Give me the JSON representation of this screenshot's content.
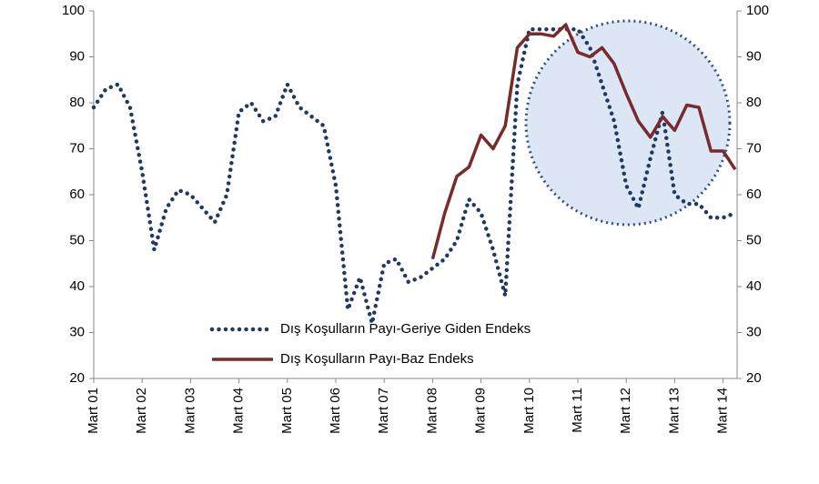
{
  "chart_data": {
    "type": "line",
    "categories": [
      "Mart 01",
      null,
      null,
      null,
      "Mart 02",
      null,
      null,
      null,
      "Mart 03",
      null,
      null,
      null,
      "Mart 04",
      null,
      null,
      null,
      "Mart 05",
      null,
      null,
      null,
      "Mart 06",
      null,
      null,
      null,
      "Mart 07",
      null,
      null,
      null,
      "Mart 08",
      null,
      null,
      null,
      "Mart 09",
      null,
      null,
      null,
      "Mart 10",
      null,
      null,
      null,
      "Mart 11",
      null,
      null,
      null,
      "Mart 12",
      null,
      null,
      null,
      "Mart 13",
      null,
      null,
      null,
      "Mart 14",
      null
    ],
    "series": [
      {
        "name": "Dış Koşulların Payı-Geriye Giden Endeks",
        "color": "#1f3864",
        "style": "dotted",
        "values": [
          79,
          83,
          84,
          79,
          65,
          48,
          57,
          61,
          60,
          57,
          54,
          60,
          78,
          80,
          76,
          77,
          84,
          79,
          77,
          75,
          62,
          35,
          42,
          32,
          45,
          46,
          41,
          42,
          44,
          46,
          50,
          59,
          56,
          48,
          38,
          84,
          96,
          96,
          96,
          96,
          96,
          92,
          84,
          76,
          62,
          57,
          68,
          78,
          60,
          58,
          58,
          55,
          55,
          56
        ]
      },
      {
        "name": "Dış Koşulların Payı-Baz Endeks",
        "color": "#772b2b",
        "style": "solid",
        "values": [
          null,
          null,
          null,
          null,
          null,
          null,
          null,
          null,
          null,
          null,
          null,
          null,
          null,
          null,
          null,
          null,
          null,
          null,
          null,
          null,
          null,
          null,
          null,
          null,
          null,
          null,
          null,
          null,
          46,
          56,
          64,
          66,
          73,
          70,
          75,
          92,
          95,
          95,
          94.5,
          97,
          91,
          90,
          92,
          88.5,
          82,
          76,
          72.5,
          77,
          74,
          79.5,
          79,
          69.5,
          69.5,
          65.5
        ]
      }
    ],
    "ylim": [
      20,
      100
    ],
    "yticks": [
      20,
      30,
      40,
      50,
      60,
      70,
      80,
      90,
      100
    ],
    "y2lim": [
      20,
      100
    ],
    "y2ticks": [
      20,
      30,
      40,
      50,
      60,
      70,
      80,
      90,
      100
    ]
  }
}
